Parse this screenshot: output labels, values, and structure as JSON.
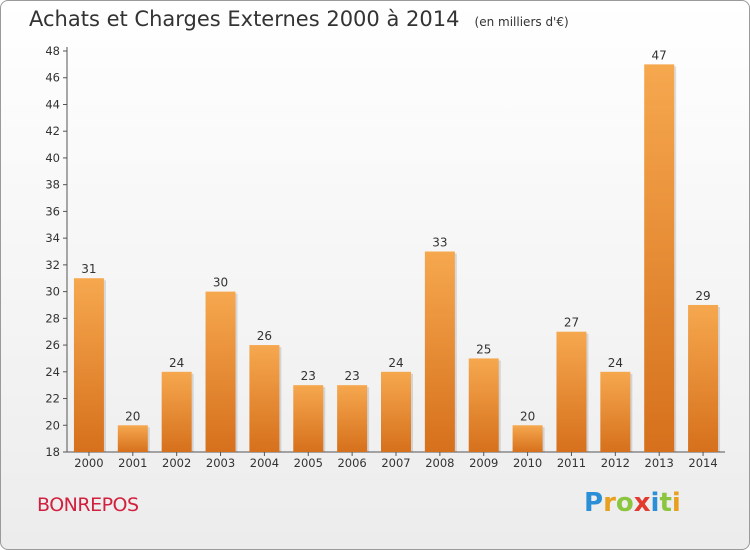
{
  "title": "Achats et Charges Externes 2000 à 2014",
  "subtitle": "(en milliers d'€)",
  "place": "BONREPOS",
  "logo": {
    "letters": [
      "P",
      "r",
      "o",
      "x",
      "i",
      "t",
      "i"
    ],
    "colors": [
      "#2a8fd6",
      "#e8a020",
      "#8cc63f",
      "#e23b2e",
      "#2a8fd6",
      "#8cc63f",
      "#e8a020"
    ]
  },
  "colors": {
    "bar_top": "#f6a84f",
    "bar_bottom": "#d6701c",
    "text": "#333333",
    "place": "#d2213f"
  },
  "chart_data": {
    "type": "bar",
    "categories": [
      "2000",
      "2001",
      "2002",
      "2003",
      "2004",
      "2005",
      "2006",
      "2007",
      "2008",
      "2009",
      "2010",
      "2011",
      "2012",
      "2013",
      "2014"
    ],
    "values": [
      31,
      20,
      24,
      30,
      26,
      23,
      23,
      24,
      33,
      25,
      20,
      27,
      24,
      47,
      29
    ],
    "ylim": [
      18,
      48
    ],
    "yticks": [
      18,
      20,
      22,
      24,
      26,
      28,
      30,
      32,
      34,
      36,
      38,
      40,
      42,
      44,
      46,
      48
    ],
    "grid": false,
    "xlabel": "",
    "ylabel": ""
  }
}
